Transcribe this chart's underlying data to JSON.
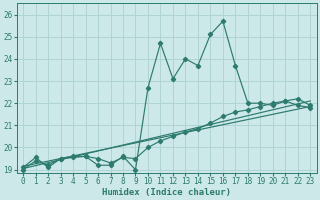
{
  "title": "",
  "xlabel": "Humidex (Indice chaleur)",
  "ylabel": "",
  "bg_color": "#cce8e8",
  "grid_color": "#b0d4d4",
  "line_color": "#2d7a6e",
  "xlim": [
    -0.5,
    23.5
  ],
  "ylim": [
    18.85,
    26.5
  ],
  "yticks": [
    19,
    20,
    21,
    22,
    23,
    24,
    25,
    26
  ],
  "xticks": [
    0,
    1,
    2,
    3,
    4,
    5,
    6,
    7,
    8,
    9,
    10,
    11,
    12,
    13,
    14,
    15,
    16,
    17,
    18,
    19,
    20,
    21,
    22,
    23
  ],
  "series1_x": [
    0,
    1,
    2,
    3,
    4,
    5,
    6,
    7,
    8,
    9,
    10,
    11,
    12,
    13,
    14,
    15,
    16,
    17,
    18,
    19,
    20,
    21,
    22,
    23
  ],
  "series1_y": [
    19.1,
    19.55,
    19.1,
    19.5,
    19.6,
    19.6,
    19.2,
    19.2,
    19.6,
    19.0,
    22.7,
    24.7,
    23.1,
    24.0,
    23.7,
    25.1,
    25.7,
    23.7,
    22.0,
    22.0,
    21.9,
    22.1,
    21.9,
    21.8
  ],
  "series2_x": [
    0,
    1,
    2,
    3,
    4,
    5,
    6,
    7,
    8,
    9,
    10,
    11,
    12,
    13,
    14,
    15,
    16,
    17,
    18,
    19,
    20,
    21,
    22,
    23
  ],
  "series2_y": [
    19.0,
    19.4,
    19.2,
    19.5,
    19.55,
    19.6,
    19.5,
    19.3,
    19.55,
    19.5,
    20.0,
    20.3,
    20.5,
    20.7,
    20.85,
    21.1,
    21.4,
    21.6,
    21.7,
    21.85,
    22.0,
    22.1,
    22.2,
    21.9
  ],
  "line1_x": [
    0,
    23
  ],
  "line1_y": [
    19.05,
    22.1
  ],
  "line2_x": [
    0,
    23
  ],
  "line2_y": [
    19.15,
    21.85
  ]
}
